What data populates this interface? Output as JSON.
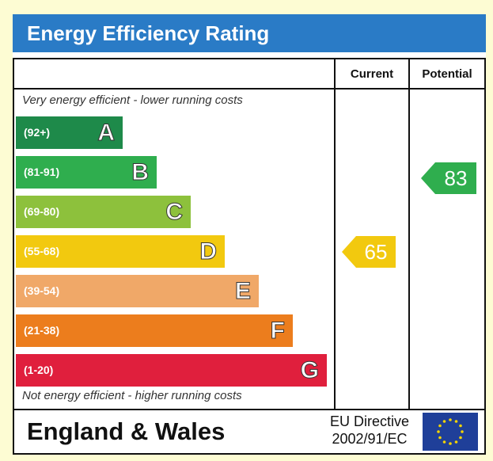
{
  "title": "Energy Efficiency Rating",
  "columns": {
    "current": "Current",
    "potential": "Potential"
  },
  "captions": {
    "top": "Very energy efficient - lower running costs",
    "bottom": "Not energy efficient - higher running costs"
  },
  "bands": [
    {
      "range": "(92+)",
      "letter": "A",
      "color": "#1e8a4a"
    },
    {
      "range": "(81-91)",
      "letter": "B",
      "color": "#2fae4e"
    },
    {
      "range": "(69-80)",
      "letter": "C",
      "color": "#8dc13c"
    },
    {
      "range": "(55-68)",
      "letter": "D",
      "color": "#f2c90f"
    },
    {
      "range": "(39-54)",
      "letter": "E",
      "color": "#f0a868"
    },
    {
      "range": "(21-38)",
      "letter": "F",
      "color": "#ec7d1d"
    },
    {
      "range": "(1-20)",
      "letter": "G",
      "color": "#e01f3d"
    }
  ],
  "ratings": {
    "current": {
      "value": "65",
      "color": "#f2c90f"
    },
    "potential": {
      "value": "83",
      "color": "#2fae4e"
    }
  },
  "footer": {
    "region": "England & Wales",
    "directive_line1": "EU Directive",
    "directive_line2": "2002/91/EC",
    "flag_color": "#1f3f99",
    "star_color": "#f5d400"
  }
}
